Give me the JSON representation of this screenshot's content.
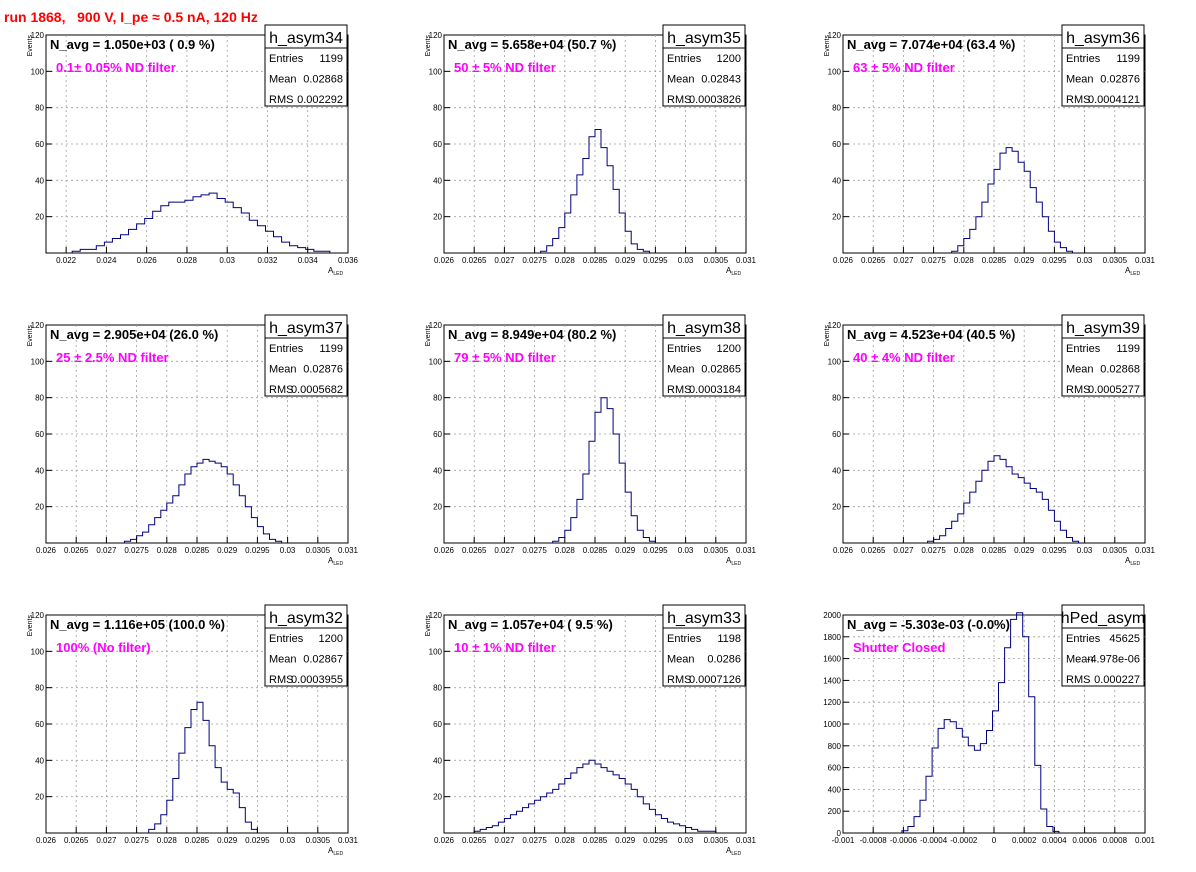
{
  "header": {
    "title": "run 1868,   900 V, I_pe ≈ 0.5 nA, 120 Hz"
  },
  "colors": {
    "title": "#ff0000",
    "annotation": "#ff00ff",
    "histogram": "#000080",
    "grid": "#a0a0a0",
    "frame": "#000000"
  },
  "stats_labels": {
    "entries": "Entries",
    "mean": "Mean",
    "rms": "RMS"
  },
  "chart_data": [
    {
      "type": "histogram",
      "name": "h_asym34",
      "navg": "N_avg = 1.050e+03 ( 0.9 %)",
      "annotation": "0.1± 0.05% ND filter",
      "entries": "1199",
      "mean": "0.02868",
      "rms": "0.002292",
      "ylabel": "Events",
      "xlabel": "A_LED",
      "xlim": [
        0.021,
        0.036
      ],
      "ylim": [
        0,
        120
      ],
      "xticks": [
        0.022,
        0.024,
        0.026,
        0.028,
        0.03,
        0.032,
        0.034,
        0.036
      ],
      "xtick_labels": [
        "0.022",
        "0.024",
        "0.026",
        "0.028",
        "0.03",
        "0.032",
        "0.034",
        "0.036"
      ],
      "yticks": [
        0,
        20,
        40,
        60,
        80,
        100,
        120
      ],
      "ytick_labels": [
        "",
        "20",
        "40",
        "60",
        "80",
        "100",
        "120"
      ],
      "x": [
        0.0225,
        0.0229,
        0.0233,
        0.0237,
        0.0241,
        0.0245,
        0.0249,
        0.0253,
        0.0257,
        0.0261,
        0.0265,
        0.0269,
        0.0273,
        0.0277,
        0.0281,
        0.0285,
        0.0289,
        0.0293,
        0.0297,
        0.0301,
        0.0305,
        0.0309,
        0.0313,
        0.0317,
        0.0321,
        0.0325,
        0.0329,
        0.0333,
        0.0337,
        0.0341,
        0.0345,
        0.0349
      ],
      "values": [
        1,
        2,
        2,
        4,
        6,
        8,
        10,
        13,
        16,
        19,
        23,
        26,
        28,
        28,
        29,
        31,
        32,
        33,
        30,
        28,
        25,
        22,
        18,
        15,
        12,
        9,
        6,
        4,
        3,
        2,
        1,
        1
      ]
    },
    {
      "type": "histogram",
      "name": "h_asym35",
      "navg": "N_avg = 5.658e+04 (50.7 %)",
      "annotation": "50 ± 5% ND filter",
      "entries": "1200",
      "mean": "0.02843",
      "rms": "0.0003826",
      "ylabel": "Events",
      "xlabel": "A_LED",
      "xlim": [
        0.026,
        0.031
      ],
      "ylim": [
        0,
        120
      ],
      "xticks": [
        0.026,
        0.0265,
        0.027,
        0.0275,
        0.028,
        0.0285,
        0.029,
        0.0295,
        0.03,
        0.0305,
        0.031
      ],
      "xtick_labels": [
        "0.026",
        "0.0265",
        "0.027",
        "0.0275",
        "0.028",
        "0.0285",
        "0.029",
        "0.0295",
        "0.03",
        "0.0305",
        "0.031"
      ],
      "yticks": [
        0,
        20,
        40,
        60,
        80,
        100,
        120
      ],
      "ytick_labels": [
        "",
        "20",
        "40",
        "60",
        "80",
        "100",
        "120"
      ],
      "x": [
        0.02765,
        0.02775,
        0.02785,
        0.02795,
        0.02805,
        0.02815,
        0.02825,
        0.02835,
        0.02845,
        0.02855,
        0.02865,
        0.02875,
        0.02885,
        0.02895,
        0.02905,
        0.02915,
        0.02925,
        0.02935
      ],
      "values": [
        1,
        4,
        8,
        14,
        22,
        32,
        43,
        52,
        64,
        68,
        58,
        48,
        35,
        22,
        12,
        5,
        2,
        1
      ]
    },
    {
      "type": "histogram",
      "name": "h_asym36",
      "navg": "N_avg = 7.074e+04 (63.4 %)",
      "annotation": "63 ± 5% ND filter",
      "entries": "1199",
      "mean": "0.02876",
      "rms": "0.0004121",
      "ylabel": "Events",
      "xlabel": "A_LED",
      "xlim": [
        0.026,
        0.031
      ],
      "ylim": [
        0,
        120
      ],
      "xticks": [
        0.026,
        0.0265,
        0.027,
        0.0275,
        0.028,
        0.0285,
        0.029,
        0.0295,
        0.03,
        0.0305,
        0.031
      ],
      "xtick_labels": [
        "0.026",
        "0.0265",
        "0.027",
        "0.0275",
        "0.028",
        "0.0285",
        "0.029",
        "0.0295",
        "0.03",
        "0.0305",
        "0.031"
      ],
      "yticks": [
        0,
        20,
        40,
        60,
        80,
        100,
        120
      ],
      "ytick_labels": [
        "",
        "20",
        "40",
        "60",
        "80",
        "100",
        "120"
      ],
      "x": [
        0.02785,
        0.02795,
        0.02805,
        0.02815,
        0.02825,
        0.02835,
        0.02845,
        0.02855,
        0.02865,
        0.02875,
        0.02885,
        0.02895,
        0.02905,
        0.02915,
        0.02925,
        0.02935,
        0.02945,
        0.02955,
        0.02965,
        0.02975
      ],
      "values": [
        1,
        4,
        8,
        13,
        20,
        28,
        38,
        46,
        55,
        58,
        56,
        50,
        45,
        36,
        28,
        20,
        12,
        6,
        3,
        1
      ]
    },
    {
      "type": "histogram",
      "name": "h_asym37",
      "navg": "N_avg = 2.905e+04 (26.0 %)",
      "annotation": "25 ± 2.5% ND filter",
      "entries": "1199",
      "mean": "0.02876",
      "rms": "0.0005682",
      "ylabel": "Events",
      "xlabel": "A_LED",
      "xlim": [
        0.026,
        0.031
      ],
      "ylim": [
        0,
        120
      ],
      "xticks": [
        0.026,
        0.0265,
        0.027,
        0.0275,
        0.028,
        0.0285,
        0.029,
        0.0295,
        0.03,
        0.0305,
        0.031
      ],
      "xtick_labels": [
        "0.026",
        "0.0265",
        "0.027",
        "0.0275",
        "0.028",
        "0.0285",
        "0.029",
        "0.0295",
        "0.03",
        "0.0305",
        "0.031"
      ],
      "yticks": [
        0,
        20,
        40,
        60,
        80,
        100,
        120
      ],
      "ytick_labels": [
        "",
        "20",
        "40",
        "60",
        "80",
        "100",
        "120"
      ],
      "x": [
        0.02735,
        0.02745,
        0.02755,
        0.02765,
        0.02775,
        0.02785,
        0.02795,
        0.02805,
        0.02815,
        0.02825,
        0.02835,
        0.02845,
        0.02855,
        0.02865,
        0.02875,
        0.02885,
        0.02895,
        0.02905,
        0.02915,
        0.02925,
        0.02935,
        0.02945,
        0.02955,
        0.02965,
        0.02975,
        0.02985
      ],
      "values": [
        1,
        2,
        4,
        6,
        10,
        14,
        18,
        22,
        26,
        32,
        38,
        42,
        44,
        46,
        45,
        44,
        42,
        38,
        32,
        26,
        20,
        14,
        9,
        5,
        2,
        1
      ]
    },
    {
      "type": "histogram",
      "name": "h_asym38",
      "navg": "N_avg = 8.949e+04 (80.2 %)",
      "annotation": "79 ± 5% ND filter",
      "entries": "1200",
      "mean": "0.02865",
      "rms": "0.0003184",
      "ylabel": "Events",
      "xlabel": "A_LED",
      "xlim": [
        0.026,
        0.031
      ],
      "ylim": [
        0,
        120
      ],
      "xticks": [
        0.026,
        0.0265,
        0.027,
        0.0275,
        0.028,
        0.0285,
        0.029,
        0.0295,
        0.03,
        0.0305,
        0.031
      ],
      "xtick_labels": [
        "0.026",
        "0.0265",
        "0.027",
        "0.0275",
        "0.028",
        "0.0285",
        "0.029",
        "0.0295",
        "0.03",
        "0.0305",
        "0.031"
      ],
      "yticks": [
        0,
        20,
        40,
        60,
        80,
        100,
        120
      ],
      "ytick_labels": [
        "",
        "20",
        "40",
        "60",
        "80",
        "100",
        "120"
      ],
      "x": [
        0.02785,
        0.02795,
        0.02805,
        0.02815,
        0.02825,
        0.02835,
        0.02845,
        0.02855,
        0.02865,
        0.02875,
        0.02885,
        0.02895,
        0.02905,
        0.02915,
        0.02925,
        0.02935,
        0.02945
      ],
      "values": [
        1,
        3,
        7,
        14,
        24,
        38,
        56,
        72,
        80,
        74,
        60,
        44,
        28,
        15,
        7,
        3,
        1
      ]
    },
    {
      "type": "histogram",
      "name": "h_asym39",
      "navg": "N_avg = 4.523e+04 (40.5 %)",
      "annotation": "40 ± 4% ND filter",
      "entries": "1199",
      "mean": "0.02868",
      "rms": "0.0005277",
      "ylabel": "Events",
      "xlabel": "A_LED",
      "xlim": [
        0.026,
        0.031
      ],
      "ylim": [
        0,
        120
      ],
      "xticks": [
        0.026,
        0.0265,
        0.027,
        0.0275,
        0.028,
        0.0285,
        0.029,
        0.0295,
        0.03,
        0.0305,
        0.031
      ],
      "xtick_labels": [
        "0.026",
        "0.0265",
        "0.027",
        "0.0275",
        "0.028",
        "0.0285",
        "0.029",
        "0.0295",
        "0.03",
        "0.0305",
        "0.031"
      ],
      "yticks": [
        0,
        20,
        40,
        60,
        80,
        100,
        120
      ],
      "ytick_labels": [
        "",
        "20",
        "40",
        "60",
        "80",
        "100",
        "120"
      ],
      "x": [
        0.02745,
        0.02755,
        0.02765,
        0.02775,
        0.02785,
        0.02795,
        0.02805,
        0.02815,
        0.02825,
        0.02835,
        0.02845,
        0.02855,
        0.02865,
        0.02875,
        0.02885,
        0.02895,
        0.02905,
        0.02915,
        0.02925,
        0.02935,
        0.02945,
        0.02955,
        0.02965,
        0.02975,
        0.02985
      ],
      "values": [
        1,
        2,
        4,
        8,
        12,
        16,
        22,
        28,
        34,
        40,
        45,
        48,
        46,
        42,
        38,
        36,
        33,
        30,
        28,
        24,
        18,
        12,
        7,
        3,
        1
      ]
    },
    {
      "type": "histogram",
      "name": "h_asym32",
      "navg": "N_avg = 1.116e+05 (100.0 %)",
      "annotation": "100% (No filter)",
      "entries": "1200",
      "mean": "0.02867",
      "rms": "0.0003955",
      "ylabel": "Events",
      "xlabel": "A_LED",
      "xlim": [
        0.026,
        0.031
      ],
      "ylim": [
        0,
        120
      ],
      "xticks": [
        0.026,
        0.0265,
        0.027,
        0.0275,
        0.028,
        0.0285,
        0.029,
        0.0295,
        0.03,
        0.0305,
        0.031
      ],
      "xtick_labels": [
        "0.026",
        "0.0265",
        "0.027",
        "0.0275",
        "0.028",
        "0.0285",
        "0.029",
        "0.0295",
        "0.03",
        "0.0305",
        "0.031"
      ],
      "yticks": [
        0,
        20,
        40,
        60,
        80,
        100,
        120
      ],
      "ytick_labels": [
        "",
        "20",
        "40",
        "60",
        "80",
        "100",
        "120"
      ],
      "x": [
        0.02775,
        0.02785,
        0.02795,
        0.02805,
        0.02815,
        0.02825,
        0.02835,
        0.02845,
        0.02855,
        0.02865,
        0.02875,
        0.02885,
        0.02895,
        0.02905,
        0.02915,
        0.02925,
        0.02935,
        0.02945
      ],
      "values": [
        2,
        5,
        10,
        18,
        30,
        44,
        58,
        68,
        72,
        62,
        48,
        36,
        28,
        24,
        22,
        14,
        6,
        2
      ]
    },
    {
      "type": "histogram",
      "name": "h_asym33",
      "navg": "N_avg = 1.057e+04 ( 9.5 %)",
      "annotation": "10 ± 1% ND filter",
      "entries": "1198",
      "mean": "0.0286",
      "rms": "0.0007126",
      "ylabel": "Events",
      "xlabel": "A_LED",
      "xlim": [
        0.026,
        0.031
      ],
      "ylim": [
        0,
        120
      ],
      "xticks": [
        0.026,
        0.0265,
        0.027,
        0.0275,
        0.028,
        0.0285,
        0.029,
        0.0295,
        0.03,
        0.0305,
        0.031
      ],
      "xtick_labels": [
        "0.026",
        "0.0265",
        "0.027",
        "0.0275",
        "0.028",
        "0.0285",
        "0.029",
        "0.0295",
        "0.03",
        "0.0305",
        "0.031"
      ],
      "yticks": [
        0,
        20,
        40,
        60,
        80,
        100,
        120
      ],
      "ytick_labels": [
        "",
        "20",
        "40",
        "60",
        "80",
        "100",
        "120"
      ],
      "x": [
        0.02655,
        0.02665,
        0.02675,
        0.02685,
        0.02695,
        0.02705,
        0.02715,
        0.02725,
        0.02735,
        0.02745,
        0.02755,
        0.02765,
        0.02775,
        0.02785,
        0.02795,
        0.02805,
        0.02815,
        0.02825,
        0.02835,
        0.02845,
        0.02855,
        0.02865,
        0.02875,
        0.02885,
        0.02895,
        0.02905,
        0.02915,
        0.02925,
        0.02935,
        0.02945,
        0.02955,
        0.02965,
        0.02975,
        0.02985,
        0.02995,
        0.03005,
        0.03015,
        0.03025,
        0.03035,
        0.03045
      ],
      "values": [
        1,
        2,
        3,
        4,
        6,
        8,
        10,
        12,
        14,
        16,
        18,
        20,
        22,
        24,
        27,
        30,
        33,
        36,
        38,
        40,
        38,
        36,
        34,
        32,
        30,
        27,
        24,
        20,
        16,
        13,
        10,
        8,
        6,
        5,
        4,
        3,
        2,
        1,
        1,
        1
      ]
    },
    {
      "type": "histogram",
      "name": "hPed_asym",
      "navg": "N_avg = -5.303e-03 (-0.0%)",
      "annotation": "Shutter Closed",
      "entries": "45625",
      "mean": "-4.978e-06",
      "rms": "0.000227",
      "ylabel": "",
      "xlabel": "",
      "xlim": [
        -0.001,
        0.001
      ],
      "ylim": [
        0,
        2000
      ],
      "xticks": [
        -0.001,
        -0.0008,
        -0.0006,
        -0.0004,
        -0.0002,
        0,
        0.0002,
        0.0004,
        0.0006,
        0.0008,
        0.001
      ],
      "xtick_labels": [
        "-0.001",
        "-0.0008",
        "-0.0006",
        "-0.0004",
        "-0.0002",
        "0",
        "0.0002",
        "0.0004",
        "0.0006",
        "0.0008",
        "0.001"
      ],
      "yticks": [
        0,
        200,
        400,
        600,
        800,
        1000,
        1200,
        1400,
        1600,
        1800,
        2000
      ],
      "ytick_labels": [
        "0",
        "200",
        "400",
        "600",
        "800",
        "1000",
        "1200",
        "1400",
        "1600",
        "1800",
        "2000"
      ],
      "x": [
        -0.00059,
        -0.00055,
        -0.00051,
        -0.00047,
        -0.00043,
        -0.00039,
        -0.00035,
        -0.00031,
        -0.00027,
        -0.00023,
        -0.00019,
        -0.00015,
        -0.00011,
        -7e-05,
        -3e-05,
        1e-05,
        5e-05,
        9e-05,
        0.00013,
        0.00017,
        0.00021,
        0.00025,
        0.00029,
        0.00033,
        0.00037,
        0.00041
      ],
      "values": [
        20,
        60,
        150,
        300,
        520,
        780,
        960,
        1040,
        1020,
        960,
        880,
        800,
        760,
        820,
        940,
        1120,
        1380,
        1700,
        1960,
        2020,
        1800,
        1250,
        620,
        220,
        60,
        15
      ]
    }
  ]
}
